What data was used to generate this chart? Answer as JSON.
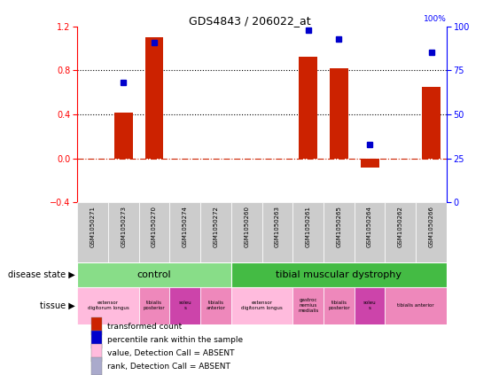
{
  "title": "GDS4843 / 206022_at",
  "samples": [
    "GSM1050271",
    "GSM1050273",
    "GSM1050270",
    "GSM1050274",
    "GSM1050272",
    "GSM1050260",
    "GSM1050263",
    "GSM1050261",
    "GSM1050265",
    "GSM1050264",
    "GSM1050262",
    "GSM1050266"
  ],
  "bar_values": [
    0.0,
    0.42,
    1.1,
    0.0,
    0.0,
    0.0,
    0.0,
    0.92,
    0.82,
    -0.08,
    0.0,
    0.65
  ],
  "dot_values_pct": [
    null,
    68,
    91,
    null,
    null,
    null,
    null,
    98,
    93,
    33,
    null,
    85
  ],
  "ylim_left": [
    -0.4,
    1.2
  ],
  "ylim_right": [
    0,
    100
  ],
  "yticks_left": [
    -0.4,
    0.0,
    0.4,
    0.8,
    1.2
  ],
  "yticks_right": [
    0,
    25,
    50,
    75,
    100
  ],
  "bar_color": "#cc2200",
  "dot_color": "#0000cc",
  "background_color": "#ffffff",
  "control_color": "#88dd88",
  "dystrophy_color": "#44bb44",
  "tissue_colors": {
    "extensor": "#ffbbdd",
    "tibialis_post": "#ee88bb",
    "soleus": "#cc44aa",
    "tibialis_ant": "#ee88bb",
    "gastroc": "#ee88bb",
    "tibialis_ant2": "#ee88bb"
  },
  "disease_state": [
    {
      "start": 0,
      "end": 5,
      "label": "control",
      "color": "#88dd88"
    },
    {
      "start": 5,
      "end": 12,
      "label": "tibial muscular dystrophy",
      "color": "#44bb44"
    }
  ],
  "tissue_data": [
    {
      "start": 0,
      "end": 2,
      "label": "extensor\ndigitorum longus",
      "color": "#ffbbdd"
    },
    {
      "start": 2,
      "end": 3,
      "label": "tibialis\nposterior",
      "color": "#ee88bb"
    },
    {
      "start": 3,
      "end": 4,
      "label": "soleu\ns",
      "color": "#cc44aa"
    },
    {
      "start": 4,
      "end": 5,
      "label": "tibialis\nanterior",
      "color": "#ee88bb"
    },
    {
      "start": 5,
      "end": 7,
      "label": "extensor\ndigitorum longus",
      "color": "#ffbbdd"
    },
    {
      "start": 7,
      "end": 8,
      "label": "gastroc\nnemius\nmedialis",
      "color": "#ee88bb"
    },
    {
      "start": 8,
      "end": 9,
      "label": "tibialis\nposterior",
      "color": "#ee88bb"
    },
    {
      "start": 9,
      "end": 10,
      "label": "soleu\ns",
      "color": "#cc44aa"
    },
    {
      "start": 10,
      "end": 12,
      "label": "tibialis anterior",
      "color": "#ee88bb"
    }
  ],
  "legend_items": [
    {
      "color": "#cc2200",
      "label": "transformed count"
    },
    {
      "color": "#0000cc",
      "label": "percentile rank within the sample"
    },
    {
      "color": "#ffbbdd",
      "label": "value, Detection Call = ABSENT"
    },
    {
      "color": "#aaaacc",
      "label": "rank, Detection Call = ABSENT"
    }
  ]
}
